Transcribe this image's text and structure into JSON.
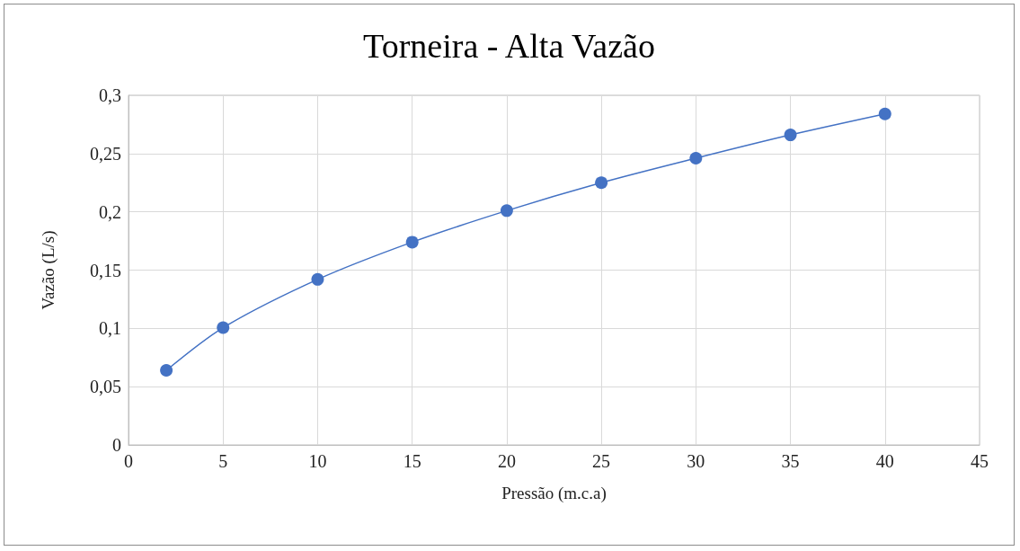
{
  "chart_data": {
    "type": "line",
    "title": "Torneira - Alta Vazão",
    "xlabel": "Pressão (m.c.a)",
    "ylabel": "Vazão (L/s)",
    "x": [
      2,
      5,
      10,
      15,
      20,
      25,
      30,
      35,
      40
    ],
    "series": [
      {
        "color": "#4472c4",
        "values": [
          0.064,
          0.1006,
          0.142,
          0.174,
          0.201,
          0.225,
          0.246,
          0.266,
          0.284
        ]
      }
    ],
    "xlim": [
      0,
      45
    ],
    "xticks": [
      0,
      5,
      10,
      15,
      20,
      25,
      30,
      35,
      40,
      45
    ],
    "ylim": [
      0,
      0.3
    ],
    "yticks": [
      0,
      {
        "value": 0.05,
        "label": "0,05"
      },
      {
        "value": 0.1,
        "label": "0,1"
      },
      {
        "value": 0.15,
        "label": "0,15"
      },
      {
        "value": 0.2,
        "label": "0,2"
      },
      {
        "value": 0.25,
        "label": "0,25"
      },
      {
        "value": 0.3,
        "label": "0,3"
      }
    ],
    "grid": true,
    "marker": "circle",
    "line_style": "solid"
  }
}
